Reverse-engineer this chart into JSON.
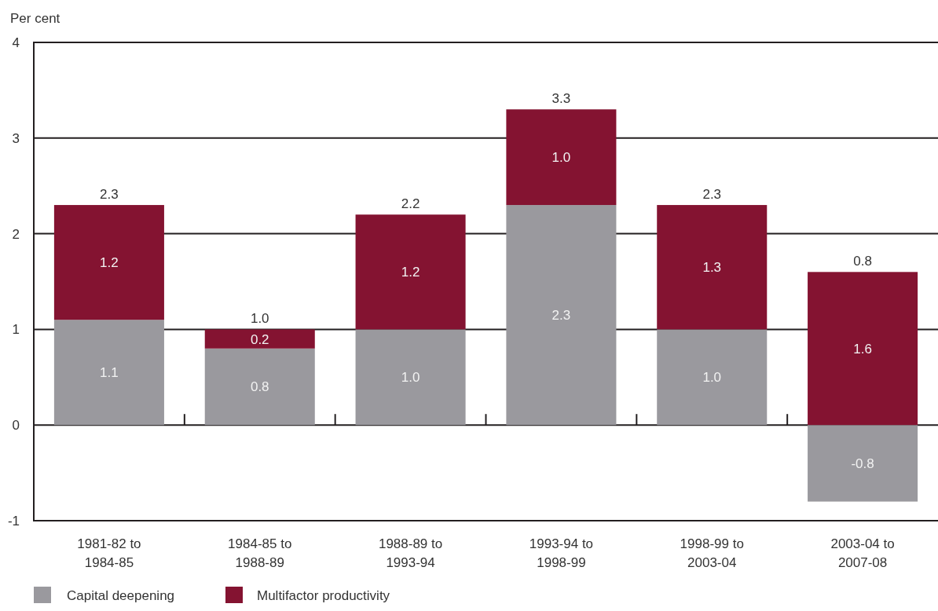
{
  "chart_data": {
    "type": "bar",
    "stacked": true,
    "ylabel": "Per cent",
    "categories": [
      "1981-82 to 1984-85",
      "1984-85 to 1988-89",
      "1988-89 to 1993-94",
      "1993-94 to 1998-99",
      "1998-99 to 2003-04",
      "2003-04 to 2007-08"
    ],
    "series": [
      {
        "name": "Capital deepening",
        "color": "#9a999e",
        "values": [
          1.1,
          0.8,
          1.0,
          2.3,
          1.0,
          -0.8
        ],
        "value_labels": [
          "1.1",
          "0.8",
          "1.0",
          "2.3",
          "1.0",
          "-0.8"
        ]
      },
      {
        "name": "Multifactor productivity",
        "color": "#841331",
        "values": [
          1.2,
          0.2,
          1.2,
          1.0,
          1.3,
          1.6
        ],
        "value_labels": [
          "1.2",
          "0.2",
          "1.2",
          "1.0",
          "1.3",
          "1.6"
        ]
      }
    ],
    "totals": [
      "2.3",
      "1.0",
      "2.2",
      "3.3",
      "2.3",
      "0.8"
    ],
    "ylim": [
      -1,
      4
    ],
    "yticks": [
      -1,
      0,
      1,
      2,
      3,
      4
    ],
    "grid": "y",
    "legend": "bottom"
  }
}
